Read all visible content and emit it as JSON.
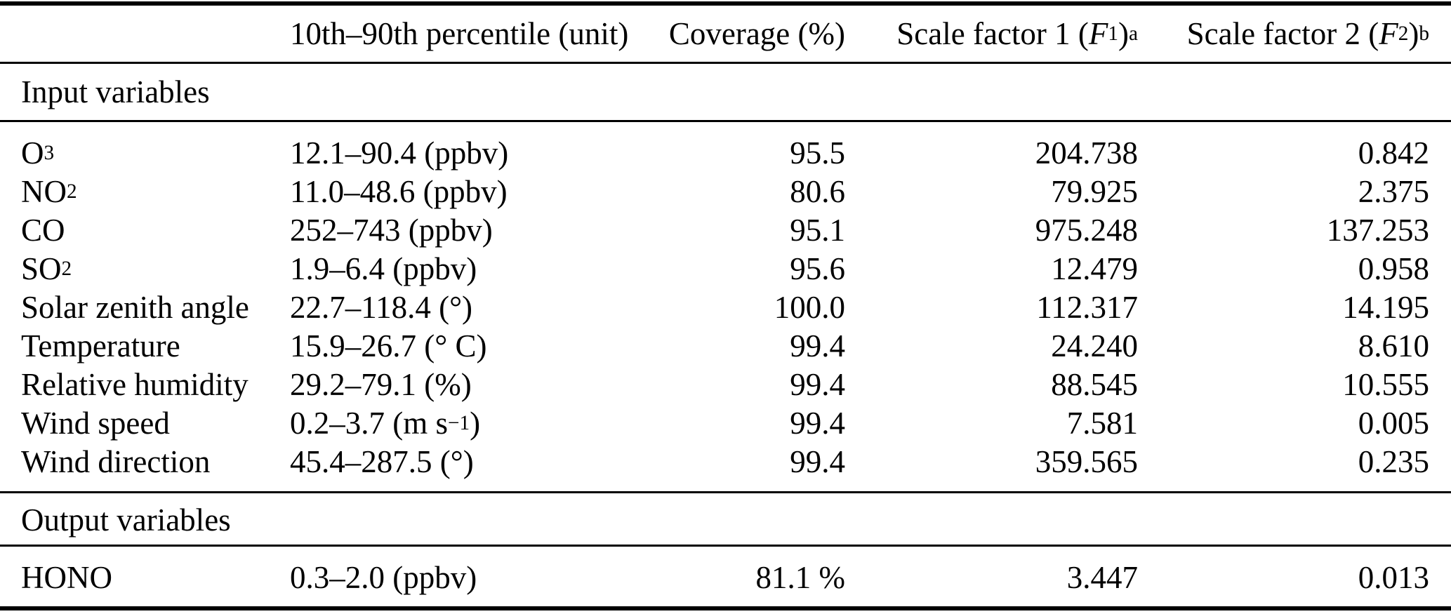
{
  "colors": {
    "background": "#ffffff",
    "text": "#000000",
    "rule": "#000000"
  },
  "table": {
    "header": {
      "col_variable": [],
      "col_percentile": [
        {
          "t": "10th–90th percentile (unit)"
        }
      ],
      "col_coverage": [
        {
          "t": "Coverage (%)"
        }
      ],
      "col_sf1": [
        {
          "t": "Scale factor 1 ("
        },
        {
          "t": "F",
          "s": "i"
        },
        {
          "t": "1",
          "s": "sub"
        },
        {
          "t": ")"
        },
        {
          "t": "a",
          "s": "sup"
        }
      ],
      "col_sf2": [
        {
          "t": "Scale factor 2 ("
        },
        {
          "t": "F",
          "s": "i"
        },
        {
          "t": "2",
          "s": "sub"
        },
        {
          "t": ")"
        },
        {
          "t": "b",
          "s": "sup"
        }
      ]
    },
    "sections": [
      {
        "title": "Input variables",
        "rows": [
          {
            "variable": [
              {
                "t": "O"
              },
              {
                "t": "3",
                "s": "sub"
              }
            ],
            "percentile": [
              {
                "t": "12.1–90.4 (ppbv)"
              }
            ],
            "coverage": "95.5",
            "sf1": "204.738",
            "sf2": "0.842"
          },
          {
            "variable": [
              {
                "t": "NO"
              },
              {
                "t": "2",
                "s": "sub"
              }
            ],
            "percentile": [
              {
                "t": "11.0–48.6 (ppbv)"
              }
            ],
            "coverage": "80.6",
            "sf1": "79.925",
            "sf2": "2.375"
          },
          {
            "variable": [
              {
                "t": "CO"
              }
            ],
            "percentile": [
              {
                "t": "252–743 (ppbv)"
              }
            ],
            "coverage": "95.1",
            "sf1": "975.248",
            "sf2": "137.253"
          },
          {
            "variable": [
              {
                "t": "SO"
              },
              {
                "t": "2",
                "s": "sub"
              }
            ],
            "percentile": [
              {
                "t": "1.9–6.4 (ppbv)"
              }
            ],
            "coverage": "95.6",
            "sf1": "12.479",
            "sf2": "0.958"
          },
          {
            "variable": [
              {
                "t": "Solar zenith angle"
              }
            ],
            "percentile": [
              {
                "t": "22.7–118.4 (°)"
              }
            ],
            "coverage": "100.0",
            "sf1": "112.317",
            "sf2": "14.195"
          },
          {
            "variable": [
              {
                "t": "Temperature"
              }
            ],
            "percentile": [
              {
                "t": "15.9–26.7 (° C)"
              }
            ],
            "coverage": "99.4",
            "sf1": "24.240",
            "sf2": "8.610"
          },
          {
            "variable": [
              {
                "t": "Relative humidity"
              }
            ],
            "percentile": [
              {
                "t": "29.2–79.1 (%)"
              }
            ],
            "coverage": "99.4",
            "sf1": "88.545",
            "sf2": "10.555"
          },
          {
            "variable": [
              {
                "t": "Wind speed"
              }
            ],
            "percentile": [
              {
                "t": "0.2–3.7 (m s"
              },
              {
                "t": "−1",
                "s": "sup"
              },
              {
                "t": ")"
              }
            ],
            "coverage": "99.4",
            "sf1": "7.581",
            "sf2": "0.005"
          },
          {
            "variable": [
              {
                "t": "Wind direction"
              }
            ],
            "percentile": [
              {
                "t": "45.4–287.5 (°)"
              }
            ],
            "coverage": "99.4",
            "sf1": "359.565",
            "sf2": "0.235"
          }
        ]
      },
      {
        "title": "Output variables",
        "rows": [
          {
            "variable": [
              {
                "t": "HONO"
              }
            ],
            "percentile": [
              {
                "t": "0.3–2.0 (ppbv)"
              }
            ],
            "coverage": "81.1 %",
            "sf1": "3.447",
            "sf2": "0.013"
          }
        ]
      }
    ]
  }
}
